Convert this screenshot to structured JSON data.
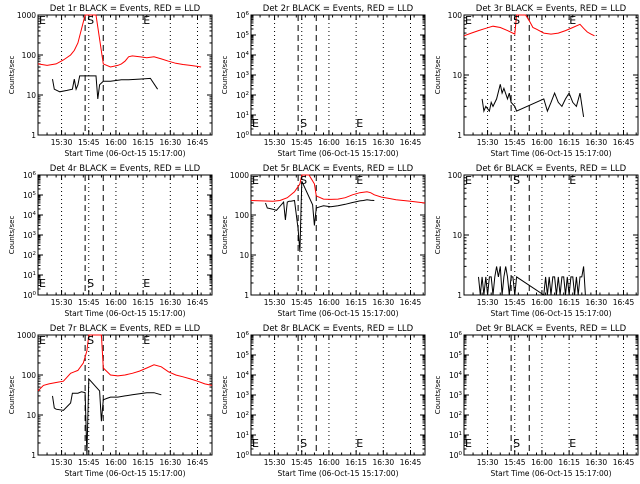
{
  "chart_data": [
    {
      "type": "line",
      "title": "Det 1r BLACK = Events, RED = LLD",
      "xlabel": "Start Time (06-Oct-15 15:17:00)",
      "ylabel": "Counts/sec",
      "yscale": "log",
      "ylim": [
        1,
        1000
      ],
      "ytick_labels": [
        "1",
        "10",
        "100",
        "1000"
      ],
      "xtick_labels": [
        "15:30",
        "15:45",
        "16:00",
        "16:15",
        "16:30",
        "16:45"
      ],
      "markers": {
        "start": "S",
        "end": "E"
      },
      "series": [
        {
          "color": "#ff0000",
          "x": [
            0,
            5,
            10,
            14,
            18,
            20,
            22,
            26,
            28,
            32,
            36,
            40,
            44,
            46,
            48,
            50,
            52,
            56,
            60,
            64,
            68,
            72,
            76,
            80,
            84,
            88,
            90
          ],
          "y": [
            60,
            55,
            60,
            75,
            100,
            130,
            200,
            1000,
            1000,
            1000,
            60,
            50,
            55,
            60,
            70,
            90,
            95,
            90,
            85,
            90,
            80,
            70,
            62,
            58,
            55,
            52,
            50
          ]
        },
        {
          "color": "#000000",
          "x": [
            8,
            9,
            12,
            16,
            19,
            20,
            21,
            22,
            23,
            26,
            32,
            33,
            34,
            36,
            40,
            46,
            50,
            56,
            62,
            66
          ],
          "y": [
            25,
            14,
            12,
            13,
            14,
            25,
            14,
            18,
            30,
            30,
            30,
            8,
            18,
            22,
            22,
            24,
            24,
            25,
            26,
            14
          ]
        }
      ]
    },
    {
      "type": "line",
      "title": "Det 2r BLACK = Events, RED = LLD",
      "xlabel": "Start Time (06-Oct-15 15:17:00)",
      "ylabel": "Counts/sec",
      "yscale": "log",
      "ylim": [
        1,
        1000000
      ],
      "ytick_labels": [
        "10^0",
        "10^1",
        "10^2",
        "10^3",
        "10^4",
        "10^5",
        "10^6"
      ],
      "xtick_labels": [
        "15:30",
        "15:45",
        "16:00",
        "16:15",
        "16:30",
        "16:45"
      ],
      "markers": {
        "start": "S",
        "end": "E"
      },
      "series": []
    },
    {
      "type": "line",
      "title": "Det 3r BLACK = Events, RED = LLD",
      "xlabel": "Start Time (06-Oct-15 15:17:00)",
      "ylabel": "Counts/sec",
      "yscale": "log",
      "ylim": [
        1,
        100
      ],
      "ytick_labels": [
        "1",
        "10",
        "100"
      ],
      "xtick_labels": [
        "15:30",
        "15:45",
        "16:00",
        "16:15",
        "16:30",
        "16:45"
      ],
      "markers": {
        "start": "S",
        "end": "E"
      },
      "series": [
        {
          "color": "#ff0000",
          "x": [
            0,
            4,
            8,
            12,
            16,
            20,
            24,
            28,
            29,
            30,
            34,
            36,
            38,
            40,
            44,
            48,
            52,
            56,
            60,
            64,
            66,
            68,
            70,
            72
          ],
          "y": [
            45,
            50,
            55,
            60,
            65,
            62,
            55,
            48,
            100,
            100,
            100,
            80,
            62,
            58,
            50,
            48,
            50,
            55,
            62,
            70,
            60,
            52,
            48,
            45
          ]
        },
        {
          "color": "#000000",
          "x": [
            10,
            11,
            12,
            14,
            15,
            16,
            18,
            20,
            21,
            22,
            24,
            25,
            26,
            28,
            29,
            44,
            46,
            48,
            50,
            52,
            54,
            56,
            58,
            60,
            62,
            64,
            66
          ],
          "y": [
            4,
            2.5,
            3,
            2.5,
            3.5,
            3,
            4,
            7,
            5,
            6,
            4,
            5,
            3.5,
            3,
            2.5,
            4,
            2.5,
            3.5,
            5,
            3.5,
            3,
            4,
            5,
            3.5,
            3,
            5,
            2
          ]
        }
      ]
    },
    {
      "type": "line",
      "title": "Det 4r BLACK = Events, RED = LLD",
      "xlabel": "Start Time (06-Oct-15 15:17:00)",
      "ylabel": "Counts/sec",
      "yscale": "log",
      "ylim": [
        1,
        1000000
      ],
      "ytick_labels": [
        "10^0",
        "10^1",
        "10^2",
        "10^3",
        "10^4",
        "10^5",
        "10^6"
      ],
      "xtick_labels": [
        "15:30",
        "15:45",
        "16:00",
        "16:15",
        "16:30",
        "16:45"
      ],
      "markers": {
        "start": "S",
        "end": "E"
      },
      "series": []
    },
    {
      "type": "line",
      "title": "Det 5r BLACK = Events, RED = LLD",
      "xlabel": "Start Time (06-Oct-15 15:17:00)",
      "ylabel": "Counts/sec",
      "yscale": "log",
      "ylim": [
        1,
        1000
      ],
      "ytick_labels": [
        "1",
        "10",
        "100",
        "1000"
      ],
      "xtick_labels": [
        "15:30",
        "15:45",
        "16:00",
        "16:15",
        "16:30",
        "16:45"
      ],
      "markers": {
        "start": "S",
        "end": "E"
      },
      "series": [
        {
          "color": "#ff0000",
          "x": [
            0,
            6,
            12,
            16,
            20,
            24,
            27,
            28,
            30,
            32,
            35,
            36,
            40,
            44,
            48,
            52,
            56,
            60,
            64,
            66,
            68,
            72,
            76,
            80,
            84,
            88,
            92,
            96
          ],
          "y": [
            230,
            225,
            220,
            230,
            270,
            380,
            600,
            1000,
            1000,
            1000,
            600,
            300,
            250,
            245,
            250,
            270,
            320,
            360,
            380,
            360,
            320,
            280,
            260,
            240,
            230,
            220,
            210,
            200
          ]
        },
        {
          "color": "#000000",
          "x": [
            8,
            9,
            12,
            14,
            18,
            19,
            20,
            21,
            22,
            24,
            26,
            27,
            28,
            34,
            35,
            36,
            38,
            40,
            44,
            48,
            52,
            56,
            58,
            60,
            62,
            64,
            66,
            68
          ],
          "y": [
            200,
            150,
            140,
            130,
            210,
            75,
            210,
            220,
            220,
            230,
            45,
            12,
            700,
            180,
            55,
            150,
            160,
            170,
            160,
            170,
            185,
            205,
            215,
            225,
            230,
            240,
            235,
            230
          ]
        }
      ]
    },
    {
      "type": "line",
      "title": "Det 6r BLACK = Events, RED = LLD",
      "xlabel": "Start Time (06-Oct-15 15:17:00)",
      "ylabel": "Counts/sec",
      "yscale": "log",
      "ylim": [
        1,
        100
      ],
      "ytick_labels": [
        "1",
        "10",
        "100"
      ],
      "xtick_labels": [
        "15:30",
        "15:45",
        "16:00",
        "16:15",
        "16:30",
        "16:45"
      ],
      "markers": {
        "start": "S",
        "end": "E"
      },
      "series": [
        {
          "color": "#000000",
          "x": [
            8,
            9,
            10,
            11,
            12,
            13,
            14,
            15,
            16,
            17,
            18,
            19,
            20,
            21,
            22,
            23,
            24,
            25,
            26,
            27,
            28,
            29,
            44,
            45,
            46,
            47,
            48,
            49,
            50,
            51,
            52,
            53,
            54,
            55,
            56,
            57,
            58,
            59,
            60,
            61,
            62,
            63,
            64,
            65,
            66,
            67
          ],
          "y": [
            2,
            1,
            2,
            1,
            2,
            1,
            2,
            2,
            1,
            2,
            3,
            2,
            3,
            1,
            2,
            3,
            2,
            1,
            2,
            2,
            1,
            2,
            1,
            2,
            1,
            2,
            1,
            2,
            2,
            1,
            2,
            1,
            2,
            2,
            1,
            2,
            1,
            2,
            2,
            1,
            2,
            1,
            2,
            2,
            3,
            1
          ]
        }
      ]
    },
    {
      "type": "line",
      "title": "Det 7r BLACK = Events, RED = LLD",
      "xlabel": "Start Time (06-Oct-15 15:17:00)",
      "ylabel": "Counts/sec",
      "yscale": "log",
      "ylim": [
        1,
        1000
      ],
      "ytick_labels": [
        "1",
        "10",
        "100",
        "1000"
      ],
      "xtick_labels": [
        "15:30",
        "15:45",
        "16:00",
        "16:15",
        "16:30",
        "16:45"
      ],
      "markers": {
        "start": "S",
        "end": "E"
      },
      "series": [
        {
          "color": "#ff0000",
          "x": [
            0,
            3,
            6,
            10,
            14,
            18,
            20,
            22,
            25,
            27,
            28,
            32,
            35,
            36,
            40,
            44,
            48,
            52,
            56,
            60,
            64,
            68,
            72,
            76,
            80,
            84,
            88,
            92,
            96
          ],
          "y": [
            40,
            55,
            60,
            65,
            70,
            110,
            120,
            130,
            200,
            400,
            1000,
            1000,
            1000,
            150,
            100,
            95,
            100,
            110,
            125,
            150,
            180,
            160,
            120,
            100,
            90,
            80,
            70,
            60,
            55
          ]
        },
        {
          "color": "#000000",
          "x": [
            8,
            9,
            10,
            14,
            18,
            19,
            20,
            22,
            24,
            26,
            27,
            28,
            34,
            35,
            36,
            38,
            40,
            44,
            48,
            52,
            56,
            60,
            64,
            68
          ],
          "y": [
            30,
            15,
            14,
            13,
            20,
            35,
            35,
            35,
            38,
            36,
            1,
            80,
            40,
            7,
            24,
            26,
            28,
            28,
            30,
            32,
            34,
            36,
            36,
            32
          ]
        }
      ]
    },
    {
      "type": "line",
      "title": "Det 8r BLACK = Events, RED = LLD",
      "xlabel": "Start Time (06-Oct-15 15:17:00)",
      "ylabel": "Counts/sec",
      "yscale": "log",
      "ylim": [
        1,
        1000000
      ],
      "ytick_labels": [
        "10^0",
        "10^1",
        "10^2",
        "10^3",
        "10^4",
        "10^5",
        "10^6"
      ],
      "xtick_labels": [
        "15:30",
        "15:45",
        "16:00",
        "16:15",
        "16:30",
        "16:45"
      ],
      "markers": {
        "start": "S",
        "end": "E"
      },
      "series": []
    },
    {
      "type": "line",
      "title": "Det 9r BLACK = Events, RED = LLD",
      "xlabel": "Start Time (06-Oct-15 15:17:00)",
      "ylabel": "Counts/sec",
      "yscale": "log",
      "ylim": [
        1,
        1000000
      ],
      "ytick_labels": [
        "10^0",
        "10^1",
        "10^2",
        "10^3",
        "10^4",
        "10^5",
        "10^6"
      ],
      "xtick_labels": [
        "15:30",
        "15:45",
        "16:00",
        "16:15",
        "16:30",
        "16:45"
      ],
      "markers": {
        "start": "S",
        "end": "E"
      },
      "series": []
    }
  ]
}
